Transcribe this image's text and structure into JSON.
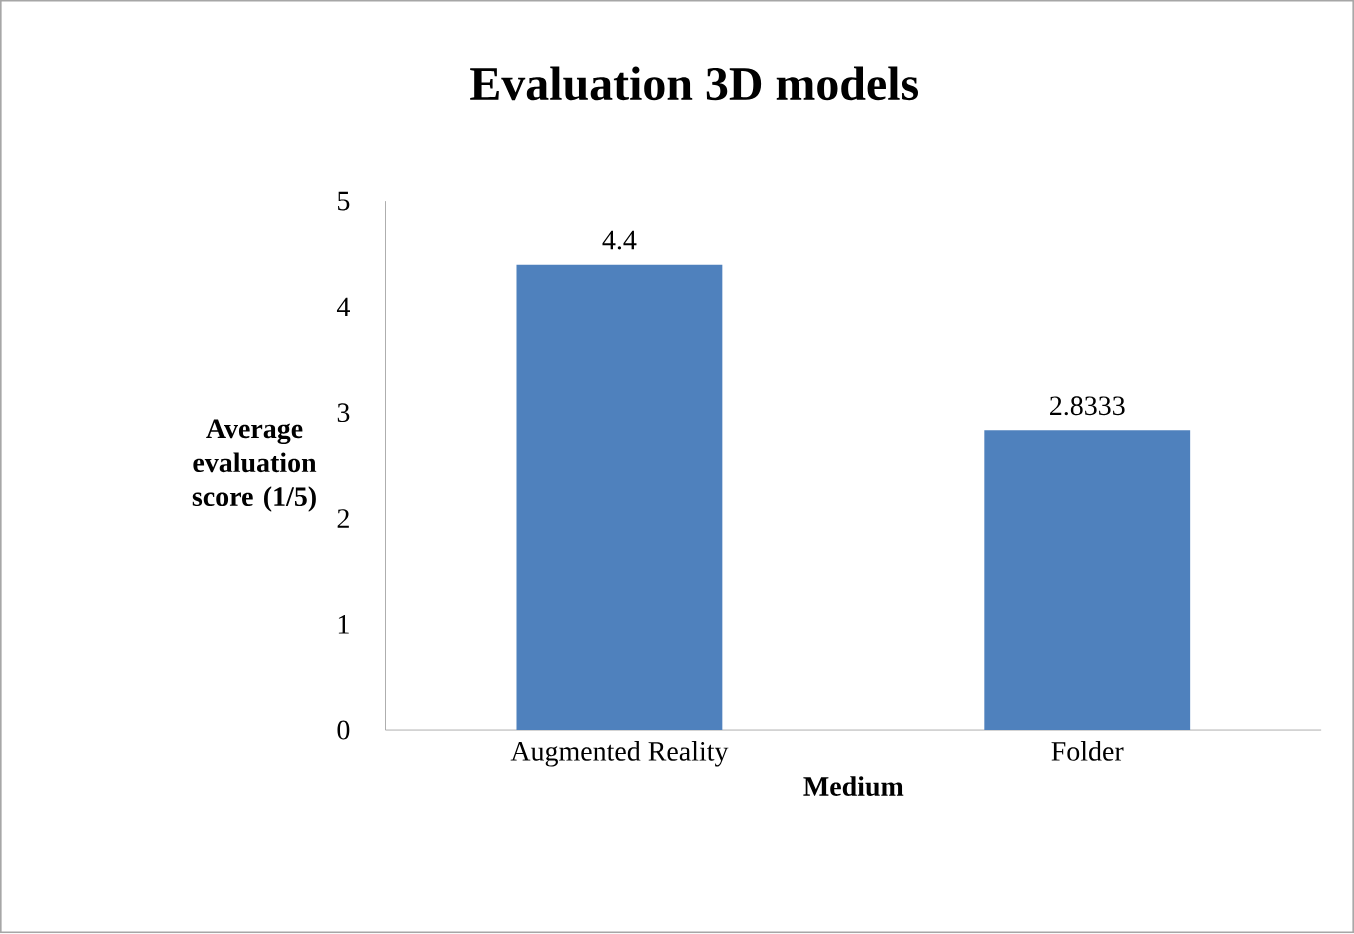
{
  "chart_data": {
    "type": "bar",
    "title": "Evaluation 3D models",
    "xlabel": "Medium",
    "ylabel": "Average evaluation score (1/5)",
    "categories": [
      "Augmented Reality",
      "Folder"
    ],
    "values": [
      4.4,
      2.8333
    ],
    "color": "#4f81bd",
    "data_labels": true,
    "ylim": [
      0,
      5
    ],
    "yticks": [
      0,
      1,
      2,
      3,
      4,
      5
    ],
    "grid": false
  }
}
